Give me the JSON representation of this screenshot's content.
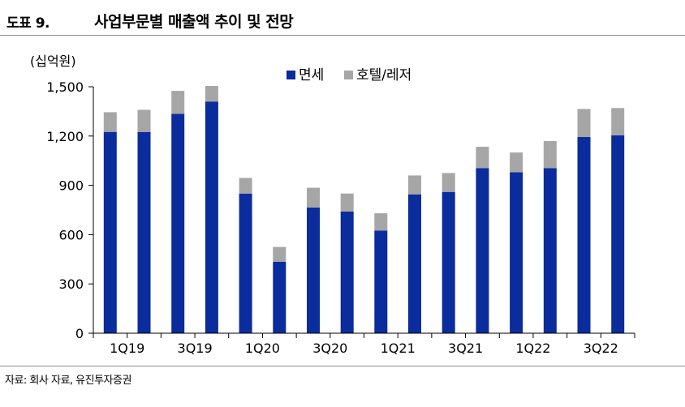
{
  "figure": {
    "label": "도표 9.",
    "title": "사업부문별 매출액 추이 및 전망",
    "source": "자료: 회사 자료, 유진투자증권"
  },
  "chart_data": {
    "type": "bar",
    "stacked": true,
    "unit_label": "(십억원)",
    "categories": [
      "1Q19",
      "2Q19",
      "3Q19",
      "4Q19",
      "1Q20",
      "2Q20",
      "3Q20",
      "4Q20",
      "1Q21",
      "2Q21",
      "3Q21",
      "4Q21",
      "1Q22",
      "2Q22",
      "3Q22",
      "4Q22"
    ],
    "x_tick_labels": [
      "1Q19",
      "3Q19",
      "1Q20",
      "3Q20",
      "1Q21",
      "3Q21",
      "1Q22",
      "3Q22"
    ],
    "series": [
      {
        "name": "면세",
        "color": "#0a2c9c",
        "values": [
          1225,
          1225,
          1335,
          1410,
          850,
          435,
          765,
          740,
          625,
          845,
          860,
          1005,
          980,
          1005,
          1195,
          1205
        ]
      },
      {
        "name": "호텔/레저",
        "color": "#a6a6a6",
        "values": [
          120,
          135,
          140,
          95,
          95,
          90,
          120,
          110,
          105,
          115,
          115,
          130,
          120,
          165,
          170,
          165
        ]
      }
    ],
    "ylim": [
      0,
      1500
    ],
    "y_ticks": [
      0,
      300,
      600,
      900,
      1200,
      1500
    ],
    "y_tick_labels": [
      "0",
      "300",
      "600",
      "900",
      "1,200",
      "1,500"
    ],
    "legend_position": "top-right",
    "grid": false
  }
}
